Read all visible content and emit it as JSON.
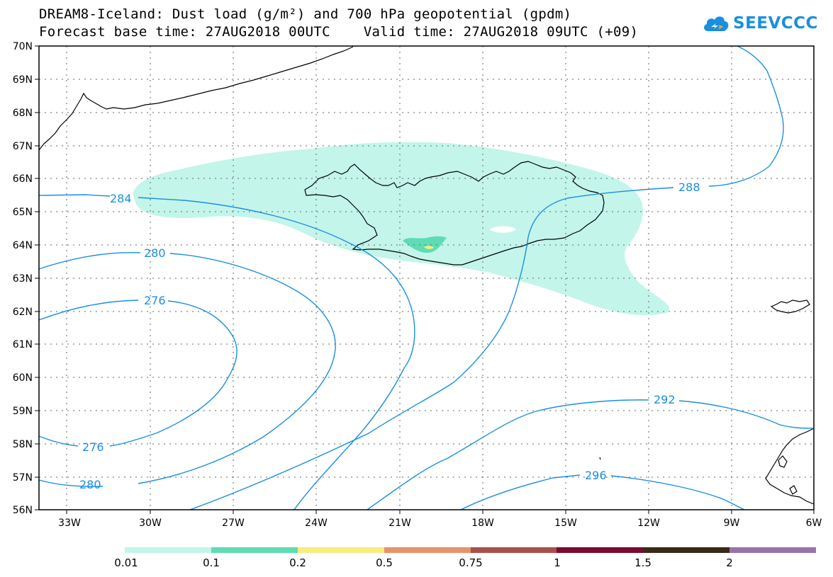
{
  "title": {
    "line1": "DREAM8-Iceland: Dust load (g/m²) and 700 hPa geopotential (gpdm)",
    "line2": "Forecast base time: 27AUG2018 00UTC    Valid time: 27AUG2018 09UTC (+09)"
  },
  "logo": {
    "text": "SEEVCCC",
    "icon": "cloud-icon",
    "color": "#1a8fe0"
  },
  "axes": {
    "lon_labels": [
      "33W",
      "30W",
      "27W",
      "24W",
      "21W",
      "18W",
      "15W",
      "12W",
      "9W",
      "6W"
    ],
    "lat_labels": [
      "70N",
      "69N",
      "68N",
      "67N",
      "66N",
      "65N",
      "64N",
      "63N",
      "62N",
      "61N",
      "60N",
      "59N",
      "58N",
      "57N",
      "56N"
    ]
  },
  "contours": {
    "color": "#1a8fe0",
    "labels": [
      "284",
      "280",
      "276",
      "276",
      "280",
      "288",
      "292",
      "296"
    ]
  },
  "dust_fill": {
    "low_color": "#bff2e8",
    "mid_color": "#5ed8b0",
    "high_color": "#f5ea80"
  },
  "colorbar": {
    "colors": [
      "#c3f5ea",
      "#5fdcb4",
      "#f8ec7c",
      "#e8926c",
      "#a85048",
      "#7a0a30",
      "#3a2a14",
      "#9a72a8"
    ],
    "labels": [
      "0.01",
      "0.1",
      "0.2",
      "0.5",
      "0.75",
      "1",
      "1.5",
      "2"
    ]
  }
}
